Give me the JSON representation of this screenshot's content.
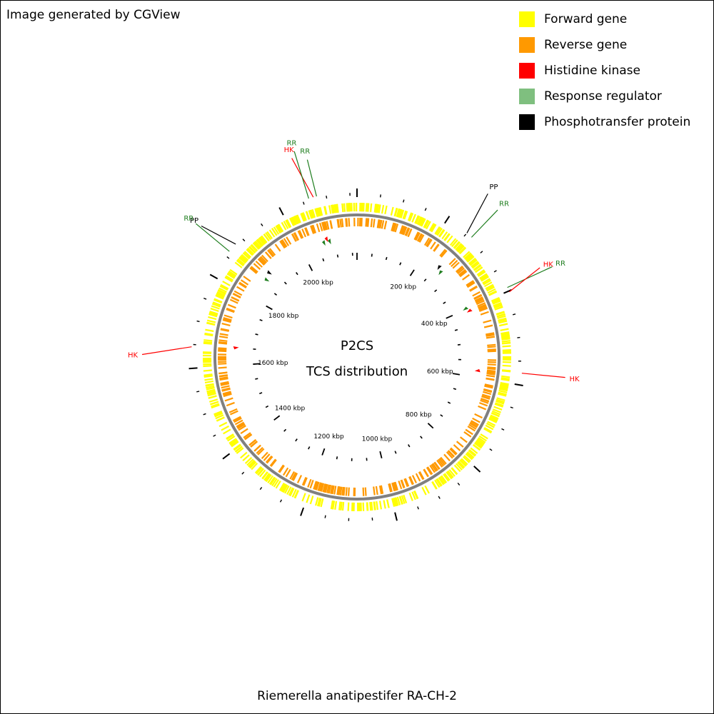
{
  "credit": "Image generated by CGView",
  "organism": "Riemerella anatipestifer RA-CH-2",
  "center": {
    "line1": "P2CS",
    "line2": "TCS distribution"
  },
  "colors": {
    "forward": "#ffff00",
    "reverse": "#ff9900",
    "hk": "#ff0000",
    "rr": "#7fbf7f",
    "pp": "#000000",
    "backbone": "#808080"
  },
  "legend": [
    {
      "label": "Forward gene",
      "color": "#ffff00"
    },
    {
      "label": "Reverse gene",
      "color": "#ff9900"
    },
    {
      "label": "Histidine kinase",
      "color": "#ff0000"
    },
    {
      "label": "Response regulator",
      "color": "#7fbf7f"
    },
    {
      "label": "Phosphotransfer protein",
      "color": "#000000"
    }
  ],
  "genome": {
    "length_kbp": 2165,
    "major_tick_kbp": 200,
    "minor_tick_kbp": 50,
    "tick_labels": [
      "200 kbp",
      "400 kbp",
      "600 kbp",
      "800 kbp",
      "1000 kbp",
      "1200 kbp",
      "1400 kbp",
      "1600 kbp",
      "1800 kbp",
      "2000 kbp"
    ]
  },
  "tcs_features": [
    {
      "type": "RR",
      "pos_kbp": 2080
    },
    {
      "type": "HK",
      "pos_kbp": 2073
    },
    {
      "type": "RR",
      "pos_kbp": 2063
    },
    {
      "type": "PP",
      "pos_kbp": 1882
    },
    {
      "type": "RR",
      "pos_kbp": 1862
    },
    {
      "type": "HK",
      "pos_kbp": 1645
    },
    {
      "type": "RR",
      "pos_kbp": 263
    },
    {
      "type": "PP",
      "pos_kbp": 250
    },
    {
      "type": "RR",
      "pos_kbp": 392
    },
    {
      "type": "HK",
      "pos_kbp": 402
    },
    {
      "type": "HK",
      "pos_kbp": 575
    }
  ]
}
